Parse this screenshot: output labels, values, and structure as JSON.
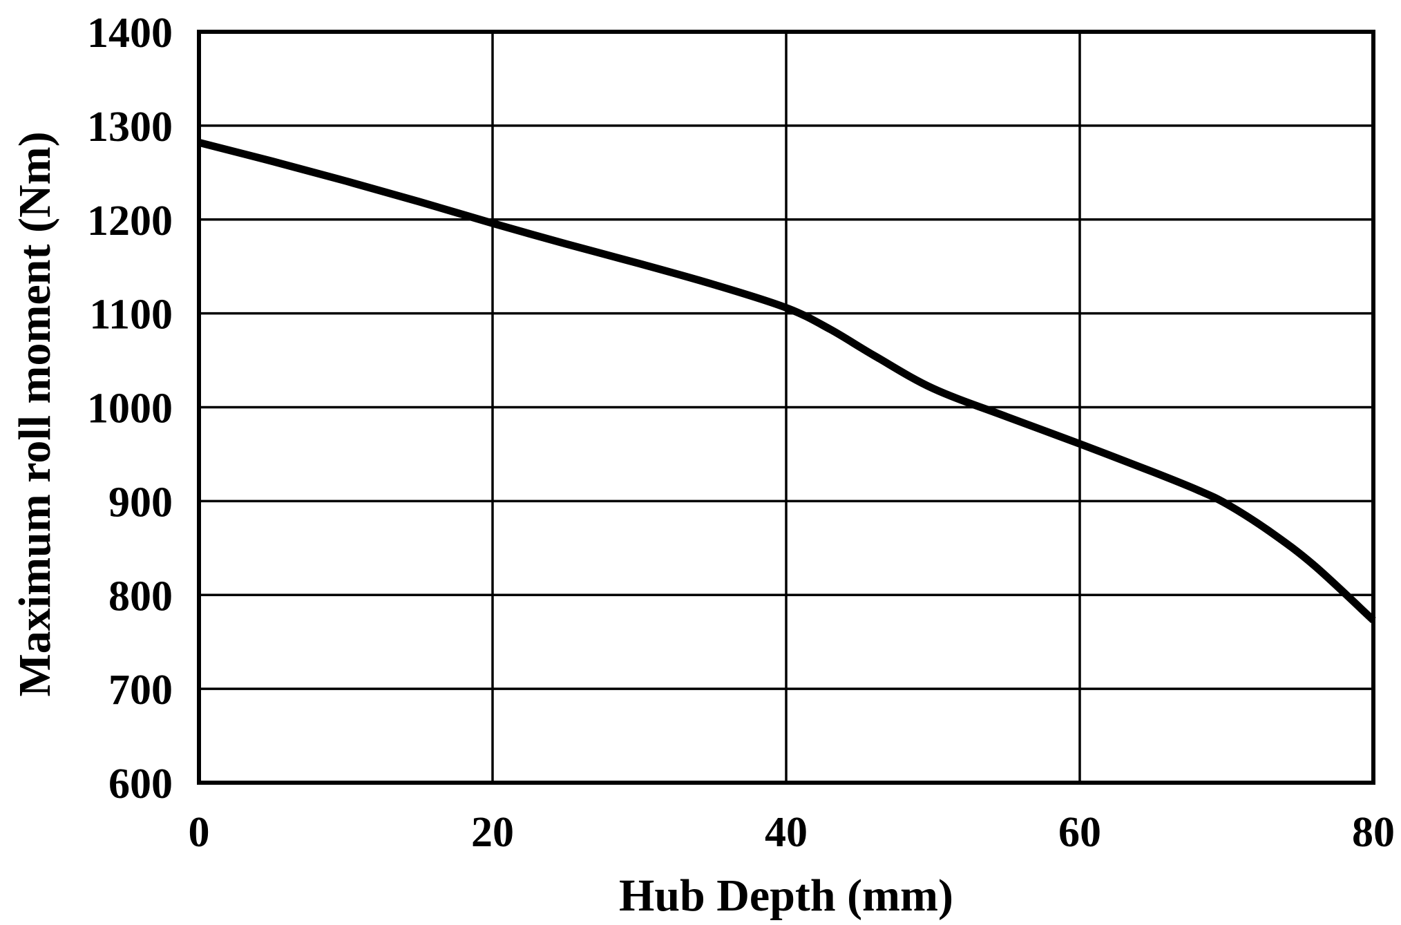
{
  "chart_data": {
    "type": "line",
    "title": "",
    "xlabel": "Hub Depth (mm)",
    "ylabel": "Maximum roll moment (Nm)",
    "xlim": [
      0,
      80
    ],
    "ylim": [
      600,
      1400
    ],
    "xticks": [
      0,
      20,
      40,
      60,
      80
    ],
    "yticks": [
      600,
      700,
      800,
      900,
      1000,
      1100,
      1200,
      1300,
      1400
    ],
    "xtick_labels": [
      "0",
      "20",
      "40",
      "60",
      "80"
    ],
    "ytick_labels": [
      "600",
      "700",
      "800",
      "900",
      "1000",
      "1100",
      "1200",
      "1300",
      "1400"
    ],
    "grid": true,
    "legend": "none",
    "line_color": "#000000",
    "series": [
      {
        "x": [
          0,
          5,
          10,
          15,
          20,
          25,
          30,
          35,
          40,
          43,
          46,
          50,
          55,
          60,
          65,
          68,
          70,
          73,
          76,
          80
        ],
        "values": [
          1282,
          1262,
          1241,
          1219,
          1196,
          1174,
          1153,
          1131,
          1106,
          1083,
          1055,
          1020,
          990,
          961,
          931,
          912,
          897,
          867,
          831,
          773
        ]
      }
    ]
  }
}
